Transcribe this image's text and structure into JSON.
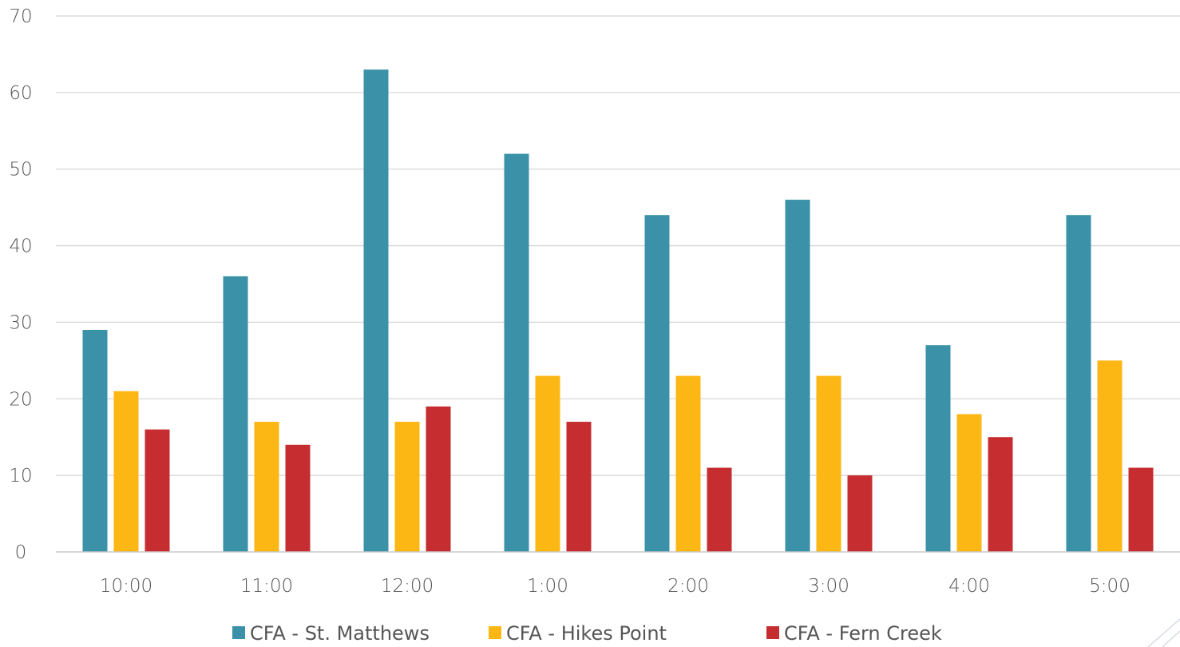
{
  "chart_data": {
    "type": "bar",
    "title": "",
    "xlabel": "",
    "ylabel": "",
    "categories": [
      "10:00",
      "11:00",
      "12:00",
      "1:00",
      "2:00",
      "3:00",
      "4:00",
      "5:00"
    ],
    "series": [
      {
        "name": "CFA - St. Matthews",
        "color": "#3a91a8",
        "values": [
          29,
          36,
          63,
          52,
          44,
          46,
          27,
          44
        ]
      },
      {
        "name": "CFA - Hikes Point",
        "color": "#fdb714",
        "values": [
          21,
          17,
          17,
          23,
          23,
          23,
          18,
          25
        ]
      },
      {
        "name": "CFA - Fern Creek",
        "color": "#c62d30",
        "values": [
          16,
          14,
          19,
          17,
          11,
          10,
          15,
          11
        ]
      }
    ],
    "ylim": [
      0,
      70
    ],
    "yticks": [
      "0",
      "10",
      "20",
      "30",
      "40",
      "50",
      "60",
      "70"
    ],
    "grid": true,
    "legend_position": "bottom"
  }
}
